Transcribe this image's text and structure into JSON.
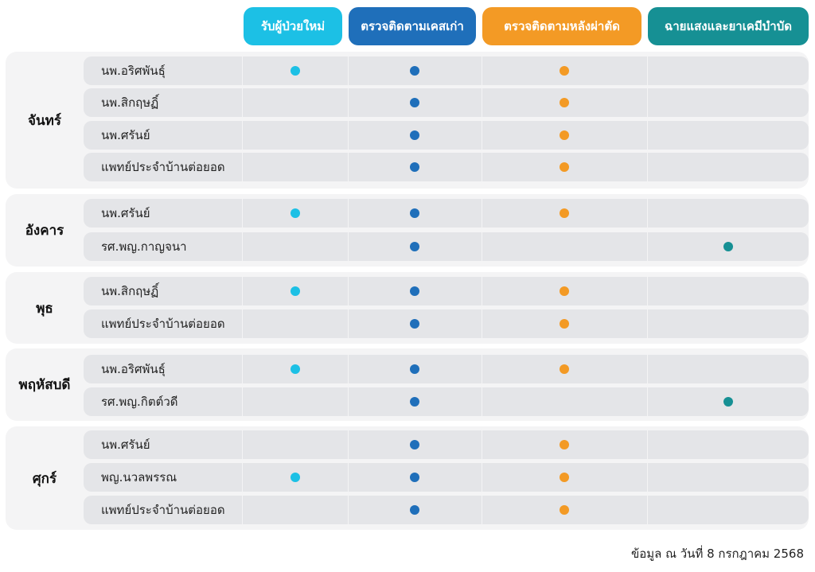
{
  "columns": [
    {
      "label": "รับผู้ป่วยใหม่",
      "color": "#1cc0e5"
    },
    {
      "label": "ตรวจติดตามเคสเก่า",
      "color": "#1f6fba"
    },
    {
      "label": "ตรวจติดตามหลังผ่าตัด",
      "color": "#f39a25"
    },
    {
      "label": "ฉายแสงและยาเคมีบำบัด",
      "color": "#169094"
    }
  ],
  "days": [
    {
      "day": "จันทร์",
      "rows": [
        {
          "name": "นพ.อริศพันธุ์",
          "marks": [
            true,
            true,
            true,
            false
          ]
        },
        {
          "name": "นพ.สิกฤษฏิ์",
          "marks": [
            false,
            true,
            true,
            false
          ]
        },
        {
          "name": "นพ.ศรันย์",
          "marks": [
            false,
            true,
            true,
            false
          ]
        },
        {
          "name": "แพทย์ประจำบ้านต่อยอด",
          "marks": [
            false,
            true,
            true,
            false
          ]
        }
      ]
    },
    {
      "day": "อังคาร",
      "rows": [
        {
          "name": "นพ.ศรันย์",
          "marks": [
            true,
            true,
            true,
            false
          ]
        },
        {
          "name": "รศ.พญ.กาญจนา",
          "marks": [
            false,
            true,
            false,
            true
          ]
        }
      ]
    },
    {
      "day": "พุธ",
      "rows": [
        {
          "name": "นพ.สิกฤษฏิ์",
          "marks": [
            true,
            true,
            true,
            false
          ]
        },
        {
          "name": "แพทย์ประจำบ้านต่อยอด",
          "marks": [
            false,
            true,
            true,
            false
          ]
        }
      ]
    },
    {
      "day": "พฤหัสบดี",
      "rows": [
        {
          "name": "นพ.อริศพันธุ์",
          "marks": [
            true,
            true,
            true,
            false
          ]
        },
        {
          "name": "รศ.พญ.กิตต์วดี",
          "marks": [
            false,
            true,
            false,
            true
          ]
        }
      ]
    },
    {
      "day": "ศุกร์",
      "rows": [
        {
          "name": "นพ.ศรันย์",
          "marks": [
            false,
            true,
            true,
            false
          ]
        },
        {
          "name": "พญ.นวลพรรณ",
          "marks": [
            true,
            true,
            true,
            false
          ]
        },
        {
          "name": "แพทย์ประจำบ้านต่อยอด",
          "marks": [
            false,
            true,
            true,
            false
          ]
        }
      ]
    }
  ],
  "footer": "ข้อมูล ณ วันที่ 8 กรกฎาคม 2568"
}
